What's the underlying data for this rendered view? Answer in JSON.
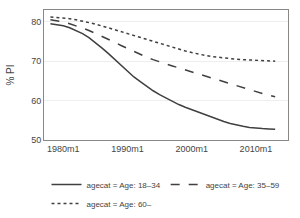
{
  "chart_data": {
    "type": "line",
    "ylabel": "% PI",
    "x": [
      1978,
      1979,
      1980,
      1981,
      1982,
      1983,
      1984,
      1985,
      1986,
      1987,
      1988,
      1989,
      1990,
      1991,
      1992,
      1993,
      1994,
      1995,
      1996,
      1997,
      1998,
      1999,
      2000,
      2001,
      2002,
      2003,
      2004,
      2005,
      2006,
      2007,
      2008,
      2009,
      2010,
      2011,
      2012,
      2013
    ],
    "series": [
      {
        "name": "agecat = Age: 18–34",
        "color": "#404040",
        "line_style": "solid",
        "values": [
          79.5,
          79.3,
          79.0,
          78.5,
          77.8,
          77.0,
          76.0,
          74.8,
          73.4,
          72.0,
          70.5,
          69.0,
          67.5,
          66.0,
          64.8,
          63.6,
          62.5,
          61.5,
          60.6,
          59.8,
          59.0,
          58.3,
          57.7,
          57.0,
          56.4,
          55.8,
          55.2,
          54.7,
          54.2,
          53.8,
          53.5,
          53.2,
          53.0,
          52.9,
          52.8,
          52.7
        ]
      },
      {
        "name": "agecat = Age: 35–59",
        "color": "#404040",
        "line_style": "dashed",
        "values": [
          80.5,
          80.3,
          80.0,
          79.5,
          79.0,
          78.4,
          77.8,
          77.1,
          76.4,
          75.6,
          74.8,
          74.0,
          73.2,
          72.4,
          71.7,
          71.0,
          70.4,
          69.8,
          69.3,
          68.8,
          68.3,
          67.8,
          67.3,
          66.8,
          66.2,
          65.7,
          65.2,
          64.7,
          64.2,
          63.7,
          63.2,
          62.7,
          62.2,
          61.8,
          61.4,
          61.0
        ]
      },
      {
        "name": "agecat = Age: 60–",
        "color": "#404040",
        "line_style": "dotted",
        "values": [
          81.2,
          81.1,
          81.0,
          80.8,
          80.5,
          80.2,
          79.8,
          79.4,
          79.0,
          78.5,
          78.0,
          77.5,
          77.0,
          76.5,
          76.0,
          75.5,
          75.0,
          74.5,
          74.0,
          73.5,
          73.0,
          72.6,
          72.2,
          71.8,
          71.5,
          71.2,
          71.0,
          70.8,
          70.6,
          70.5,
          70.4,
          70.3,
          70.2,
          70.1,
          70.1,
          70.0
        ]
      }
    ],
    "xlim": [
      1977,
      2015
    ],
    "xticks": [
      {
        "value": 1980,
        "label": "1980m1"
      },
      {
        "value": 1990,
        "label": "1990m1"
      },
      {
        "value": 2000,
        "label": "2000m1"
      },
      {
        "value": 2010,
        "label": "2010m1"
      }
    ],
    "ylim": [
      50,
      83
    ],
    "yticks": [
      50,
      60,
      70,
      80
    ],
    "grid": true,
    "legend": "bottom"
  }
}
